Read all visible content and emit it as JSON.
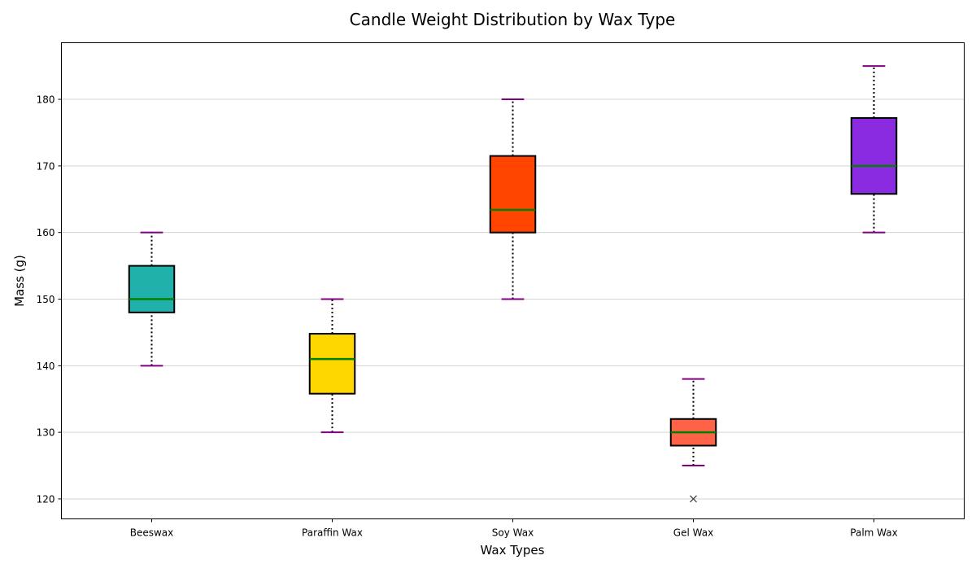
{
  "chart_data": {
    "type": "box",
    "title": "Candle Weight Distribution by Wax Type",
    "xlabel": "Wax Types",
    "ylabel": "Mass (g)",
    "ylim": [
      117,
      188.5
    ],
    "yticks": [
      120,
      130,
      140,
      150,
      160,
      170,
      180
    ],
    "grid": "horizontal",
    "categories": [
      "Beeswax",
      "Paraffin Wax",
      "Soy Wax",
      "Gel Wax",
      "Palm Wax"
    ],
    "boxes": [
      {
        "category": "Beeswax",
        "whisker_low": 140,
        "q1": 148,
        "median": 150,
        "q3": 155,
        "whisker_high": 160,
        "outliers": [],
        "color": "#20b2aa"
      },
      {
        "category": "Paraffin Wax",
        "whisker_low": 130,
        "q1": 135.8,
        "median": 141,
        "q3": 144.8,
        "whisker_high": 150,
        "outliers": [],
        "color": "#ffd700"
      },
      {
        "category": "Soy Wax",
        "whisker_low": 150,
        "q1": 160,
        "median": 163.4,
        "q3": 171.5,
        "whisker_high": 180,
        "outliers": [],
        "color": "#ff4500"
      },
      {
        "category": "Gel Wax",
        "whisker_low": 125,
        "q1": 128,
        "median": 130,
        "q3": 132,
        "whisker_high": 138,
        "outliers": [
          120
        ],
        "color": "#ff6347"
      },
      {
        "category": "Palm Wax",
        "whisker_low": 160,
        "q1": 165.8,
        "median": 170,
        "q3": 177.2,
        "whisker_high": 185,
        "outliers": [],
        "color": "#8a2be2"
      }
    ],
    "style": {
      "median_color": "#008000",
      "cap_color": "#800080",
      "whisker_color": "#000000",
      "box_edge_color": "#000000",
      "grid_color": "#d3d3d3",
      "outlier_marker": "x"
    }
  }
}
